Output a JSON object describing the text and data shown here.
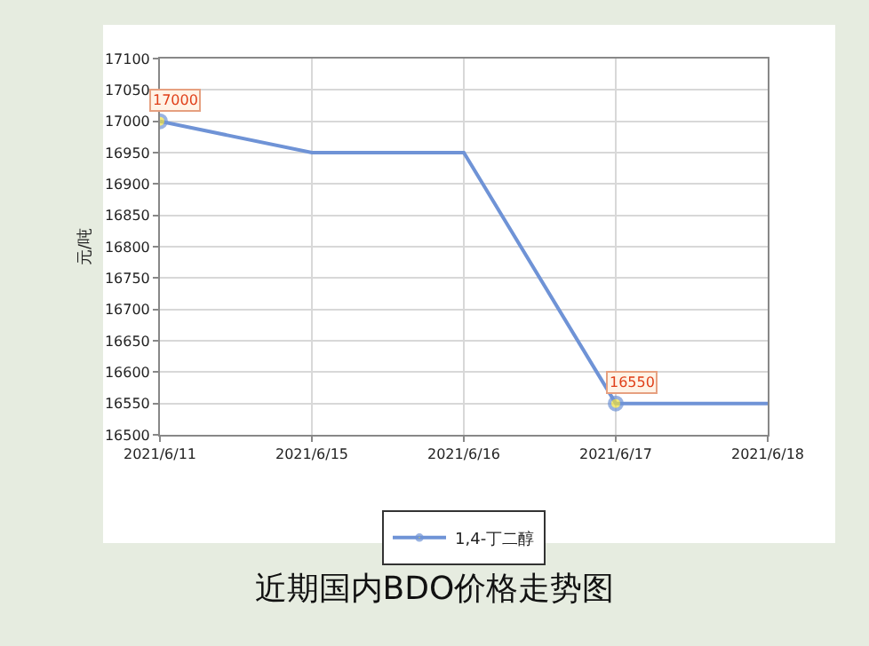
{
  "chart_data": {
    "type": "line",
    "title": "近期国内BDO价格走势图",
    "ylabel": "元/吨",
    "categories": [
      "2021/6/11",
      "2021/6/15",
      "2021/6/16",
      "2021/6/17",
      "2021/6/18"
    ],
    "series": [
      {
        "name": "1,4-丁二醇",
        "color": "#6f93d6",
        "values": [
          17000,
          16950,
          16950,
          16550,
          16550
        ],
        "value_labels": [
          "17000",
          null,
          null,
          "16550",
          null
        ]
      }
    ],
    "ylim": [
      16500,
      17100
    ],
    "yticks": [
      16500,
      16550,
      16600,
      16650,
      16700,
      16750,
      16800,
      16850,
      16900,
      16950,
      17000,
      17050,
      17100
    ],
    "grid": true,
    "legend": "bottom"
  }
}
